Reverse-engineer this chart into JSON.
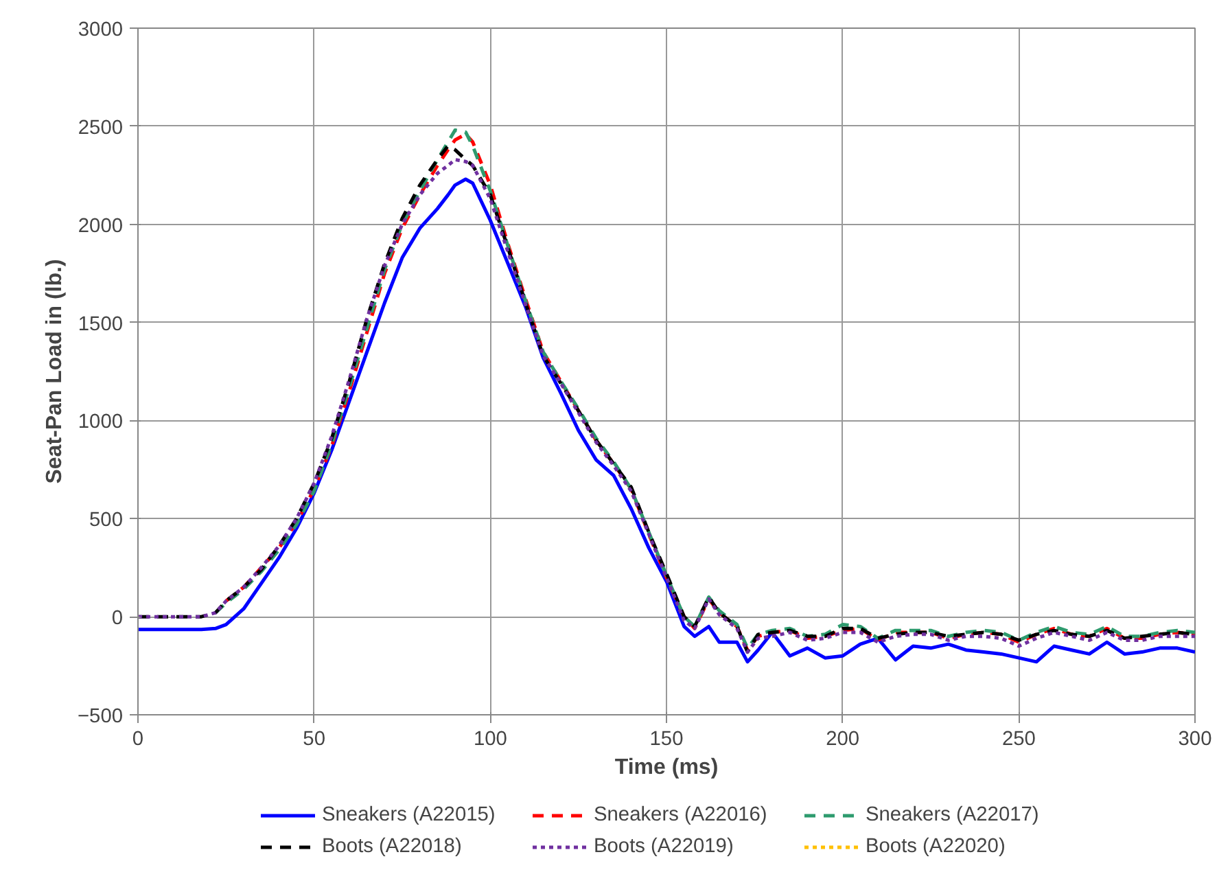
{
  "chart_data": {
    "type": "line",
    "xlabel": "Time (ms)",
    "ylabel": "Seat-Pan Load in (lb.)",
    "xlim": [
      0,
      300
    ],
    "xticks": [
      0,
      50,
      100,
      150,
      200,
      250,
      300
    ],
    "ylim": [
      -500,
      3000
    ],
    "yticks": [
      -500,
      0,
      500,
      1000,
      1500,
      2000,
      2500,
      3000
    ],
    "grid": true,
    "legend": "bottom",
    "marker": "none",
    "x": [
      0,
      10,
      18,
      22,
      25,
      30,
      35,
      40,
      45,
      50,
      55,
      60,
      65,
      70,
      75,
      80,
      85,
      88,
      90,
      93,
      95,
      100,
      105,
      110,
      115,
      120,
      125,
      130,
      135,
      140,
      145,
      150,
      155,
      158,
      162,
      165,
      170,
      173,
      176,
      180,
      185,
      190,
      195,
      200,
      205,
      210,
      215,
      220,
      225,
      230,
      235,
      240,
      245,
      250,
      255,
      260,
      265,
      270,
      275,
      280,
      285,
      290,
      295,
      300
    ],
    "series": [
      {
        "name": "Sneakers (A22015)",
        "color": "#0000ff",
        "line_style": "solid",
        "values": [
          -65,
          -65,
          -65,
          -60,
          -40,
          40,
          170,
          300,
          450,
          630,
          850,
          1100,
          1350,
          1600,
          1830,
          1980,
          2080,
          2150,
          2200,
          2230,
          2210,
          2020,
          1800,
          1580,
          1320,
          1140,
          950,
          800,
          720,
          550,
          350,
          180,
          -50,
          -100,
          -50,
          -130,
          -130,
          -230,
          -170,
          -80,
          -200,
          -160,
          -210,
          -200,
          -140,
          -110,
          -220,
          -150,
          -160,
          -140,
          -170,
          -180,
          -190,
          -210,
          -230,
          -150,
          -170,
          -190,
          -130,
          -190,
          -180,
          -160,
          -160,
          -180
        ]
      },
      {
        "name": "Sneakers (A22016)",
        "color": "#ff0000",
        "line_style": "dashed",
        "values": [
          null,
          null,
          null,
          null,
          80,
          150,
          250,
          350,
          480,
          650,
          870,
          1150,
          1450,
          1750,
          1980,
          2150,
          2300,
          2380,
          2430,
          2460,
          2420,
          2200,
          1900,
          1620,
          1350,
          1200,
          1050,
          900,
          780,
          650,
          420,
          200,
          0,
          -60,
          90,
          20,
          -50,
          -170,
          -100,
          -80,
          -70,
          -110,
          -100,
          -70,
          -60,
          -120,
          -80,
          -80,
          -80,
          -110,
          -90,
          -80,
          -90,
          -130,
          -90,
          -60,
          -90,
          -100,
          -60,
          -110,
          -110,
          -90,
          -80,
          -90
        ]
      },
      {
        "name": "Sneakers (A22017)",
        "color": "#2e9b6e",
        "line_style": "dashed",
        "values": [
          null,
          null,
          null,
          20,
          70,
          140,
          230,
          340,
          470,
          640,
          880,
          1170,
          1470,
          1770,
          2000,
          2170,
          2330,
          2420,
          2480,
          2470,
          2400,
          2170,
          1890,
          1610,
          1350,
          1200,
          1060,
          910,
          790,
          650,
          430,
          210,
          0,
          -50,
          100,
          30,
          -40,
          -160,
          -90,
          -70,
          -60,
          -100,
          -90,
          -40,
          -50,
          -110,
          -70,
          -70,
          -70,
          -100,
          -80,
          -70,
          -80,
          -120,
          -80,
          -50,
          -80,
          -90,
          -50,
          -100,
          -100,
          -80,
          -70,
          -80
        ]
      },
      {
        "name": "Boots (A22018)",
        "color": "#000000",
        "line_style": "dashed",
        "values": [
          0,
          0,
          0,
          20,
          80,
          150,
          240,
          360,
          500,
          680,
          910,
          1200,
          1520,
          1800,
          2030,
          2200,
          2330,
          2400,
          2380,
          2330,
          2300,
          2150,
          1880,
          1600,
          1330,
          1190,
          1050,
          900,
          780,
          660,
          430,
          220,
          0,
          -50,
          100,
          20,
          -50,
          -180,
          -90,
          -80,
          -70,
          -100,
          -100,
          -60,
          -60,
          -110,
          -90,
          -80,
          -80,
          -100,
          -90,
          -80,
          -90,
          -120,
          -90,
          -70,
          -90,
          -100,
          -70,
          -110,
          -100,
          -90,
          -80,
          -90
        ]
      },
      {
        "name": "Boots (A22019)",
        "color": "#7030a0",
        "line_style": "dotted",
        "values": [
          0,
          0,
          0,
          20,
          80,
          150,
          250,
          360,
          500,
          680,
          920,
          1210,
          1520,
          1790,
          2000,
          2150,
          2260,
          2300,
          2330,
          2320,
          2300,
          2130,
          1860,
          1590,
          1330,
          1190,
          1040,
          890,
          770,
          640,
          420,
          200,
          -20,
          -60,
          90,
          10,
          -60,
          -180,
          -110,
          -100,
          -80,
          -120,
          -110,
          -80,
          -80,
          -130,
          -100,
          -90,
          -90,
          -120,
          -100,
          -100,
          -110,
          -150,
          -110,
          -80,
          -100,
          -120,
          -80,
          -120,
          -120,
          -100,
          -100,
          -100
        ]
      },
      {
        "name": "Boots (A22020)",
        "color": "#ffc000",
        "line_style": "dotted",
        "values": [
          null,
          null,
          null,
          null,
          null,
          null,
          null,
          null,
          null,
          null,
          null,
          null,
          null,
          null,
          null,
          null,
          null,
          null,
          null,
          null,
          null,
          null,
          null,
          null,
          null,
          null,
          null,
          null,
          null,
          null,
          null,
          null,
          null,
          null,
          null,
          null,
          null,
          null,
          null,
          null,
          null,
          null,
          null,
          null,
          null,
          null,
          null,
          null,
          null,
          null,
          null,
          null,
          null,
          null,
          null,
          null,
          null,
          null,
          null,
          null,
          null,
          null,
          null,
          null
        ]
      }
    ]
  }
}
